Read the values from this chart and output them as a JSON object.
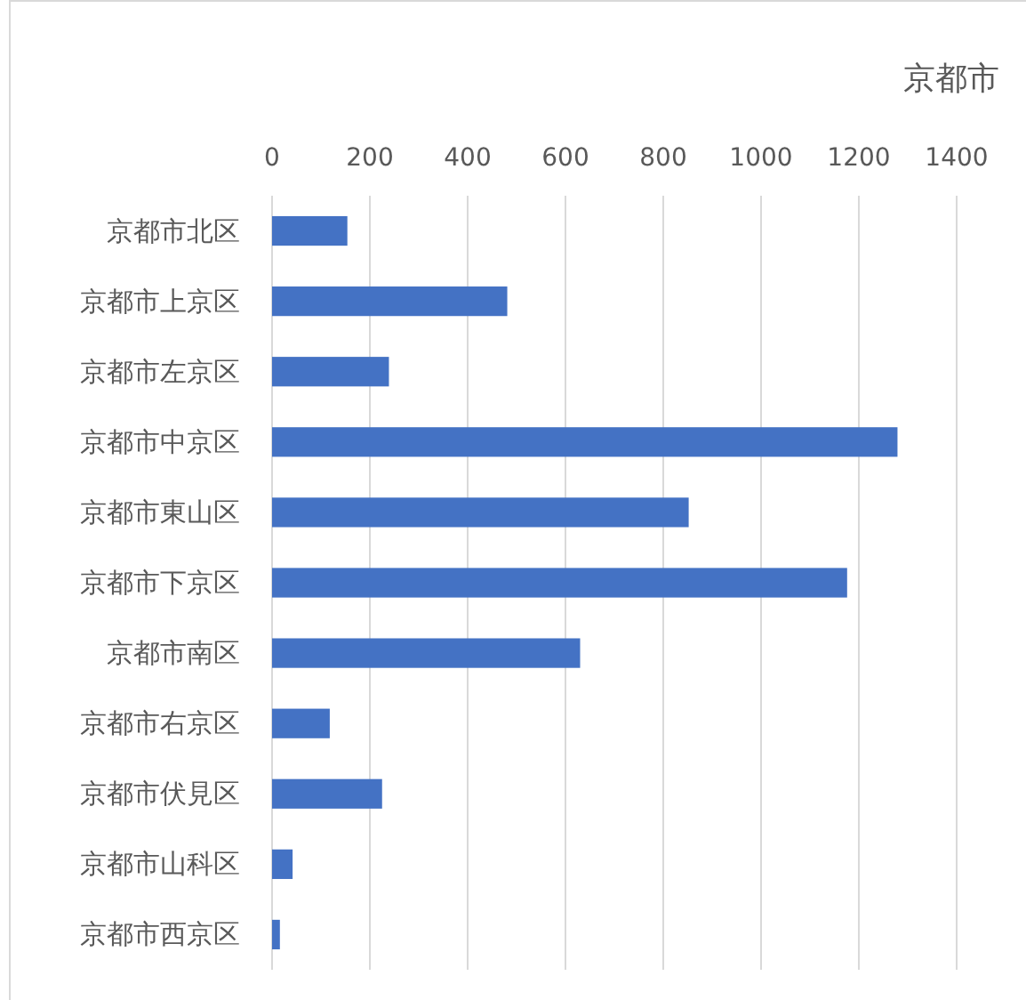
{
  "chart_data": {
    "type": "bar",
    "orientation": "horizontal",
    "title": "京都市",
    "categories": [
      "京都市北区",
      "京都市上京区",
      "京都市左京区",
      "京都市中京区",
      "京都市東山区",
      "京都市下京区",
      "京都市南区",
      "京都市右京区",
      "京都市伏見区",
      "京都市山科区",
      "京都市西京区"
    ],
    "values": [
      154,
      481,
      239,
      1279,
      852,
      1176,
      630,
      118,
      225,
      42,
      16
    ],
    "color": "#4472c4",
    "xlim": [
      0,
      1400
    ],
    "xticks": [
      0,
      200,
      400,
      600,
      800,
      1000,
      1200,
      1400
    ],
    "grid": "x"
  }
}
